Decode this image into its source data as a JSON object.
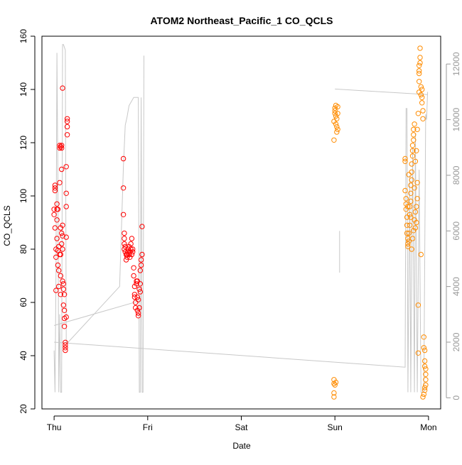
{
  "chart_data": {
    "type": "scatter",
    "title": "ATOM2 Northeast_Pacific_1 CO_QCLS",
    "xlabel": "Date",
    "ylabel": "CO_QCLS",
    "x_ticks": [
      "Thu",
      "Fri",
      "Sat",
      "Sun",
      "Mon"
    ],
    "xlim": [
      -0.13,
      4.13
    ],
    "ylim": [
      20,
      160
    ],
    "y_ticks": [
      20,
      40,
      60,
      80,
      100,
      120,
      140,
      160
    ],
    "y2lim": [
      -400,
      13000
    ],
    "y2_ticks": [
      0,
      2000,
      4000,
      6000,
      8000,
      10000,
      12000
    ],
    "grid": false,
    "legend": "none",
    "colors": {
      "red": "#ff0000",
      "orange": "#ff8c00",
      "altitude": "#c8c8c8"
    },
    "series": [
      {
        "color": "red",
        "marker": "circle-open",
        "points": [
          [
            0.0,
            95
          ],
          [
            0.0,
            93
          ],
          [
            0.01,
            102
          ],
          [
            0.01,
            104
          ],
          [
            0.01,
            103
          ],
          [
            0.01,
            88
          ],
          [
            0.02,
            80
          ],
          [
            0.02,
            64.5
          ],
          [
            0.02,
            77
          ],
          [
            0.03,
            95
          ],
          [
            0.03,
            84
          ],
          [
            0.03,
            97
          ],
          [
            0.03,
            91
          ],
          [
            0.04,
            95
          ],
          [
            0.04,
            79.5
          ],
          [
            0.04,
            74
          ],
          [
            0.05,
            81
          ],
          [
            0.05,
            66
          ],
          [
            0.05,
            72
          ],
          [
            0.06,
            78
          ],
          [
            0.06,
            105
          ],
          [
            0.06,
            118
          ],
          [
            0.06,
            119
          ],
          [
            0.07,
            118.5
          ],
          [
            0.07,
            70
          ],
          [
            0.07,
            88
          ],
          [
            0.07,
            78
          ],
          [
            0.07,
            63
          ],
          [
            0.08,
            82
          ],
          [
            0.08,
            110
          ],
          [
            0.08,
            86
          ],
          [
            0.08,
            119
          ],
          [
            0.08,
            118
          ],
          [
            0.09,
            140.5
          ],
          [
            0.09,
            89
          ],
          [
            0.09,
            85
          ],
          [
            0.09,
            80
          ],
          [
            0.09,
            68
          ],
          [
            0.1,
            65
          ],
          [
            0.1,
            67
          ],
          [
            0.1,
            59
          ],
          [
            0.11,
            63
          ],
          [
            0.11,
            57
          ],
          [
            0.11,
            54
          ],
          [
            0.11,
            51
          ],
          [
            0.12,
            45
          ],
          [
            0.12,
            43
          ],
          [
            0.12,
            42
          ],
          [
            0.12,
            44
          ],
          [
            0.13,
            54.5
          ],
          [
            0.13,
            101
          ],
          [
            0.13,
            96
          ],
          [
            0.13,
            84.5
          ],
          [
            0.13,
            111
          ],
          [
            0.14,
            123
          ],
          [
            0.14,
            129
          ],
          [
            0.14,
            126
          ],
          [
            0.14,
            128
          ],
          [
            0.74,
            114
          ],
          [
            0.74,
            103
          ],
          [
            0.74,
            93
          ],
          [
            0.75,
            86
          ],
          [
            0.75,
            84
          ],
          [
            0.75,
            82
          ],
          [
            0.75,
            80
          ],
          [
            0.76,
            81
          ],
          [
            0.76,
            79
          ],
          [
            0.77,
            78
          ],
          [
            0.77,
            76
          ],
          [
            0.78,
            77
          ],
          [
            0.78,
            78
          ],
          [
            0.79,
            79
          ],
          [
            0.79,
            80
          ],
          [
            0.8,
            78
          ],
          [
            0.8,
            81
          ],
          [
            0.81,
            77
          ],
          [
            0.81,
            79
          ],
          [
            0.82,
            80
          ],
          [
            0.82,
            82
          ],
          [
            0.83,
            84
          ],
          [
            0.83,
            78
          ],
          [
            0.84,
            79
          ],
          [
            0.84,
            80
          ],
          [
            0.85,
            73
          ],
          [
            0.85,
            70
          ],
          [
            0.86,
            66
          ],
          [
            0.86,
            63
          ],
          [
            0.87,
            60
          ],
          [
            0.87,
            58
          ],
          [
            0.88,
            68
          ],
          [
            0.88,
            67
          ],
          [
            0.89,
            62
          ],
          [
            0.89,
            57
          ],
          [
            0.9,
            56
          ],
          [
            0.9,
            55
          ],
          [
            0.91,
            58
          ],
          [
            0.91,
            65
          ],
          [
            0.92,
            67
          ],
          [
            0.92,
            72
          ],
          [
            0.93,
            74
          ],
          [
            0.93,
            76
          ],
          [
            0.94,
            78
          ],
          [
            0.94,
            88.5
          ],
          [
            0.92,
            64
          ],
          [
            0.9,
            61
          ],
          [
            0.89,
            68
          ],
          [
            0.86,
            62
          ]
        ]
      },
      {
        "color": "orange",
        "marker": "circle-open",
        "points": [
          [
            2.99,
            121
          ],
          [
            2.99,
            128
          ],
          [
            3.0,
            132
          ],
          [
            3.0,
            133
          ],
          [
            3.0,
            131
          ],
          [
            3.01,
            130
          ],
          [
            3.01,
            134
          ],
          [
            3.01,
            127
          ],
          [
            3.02,
            129
          ],
          [
            3.02,
            126
          ],
          [
            3.02,
            124
          ],
          [
            3.03,
            125
          ],
          [
            3.03,
            131
          ],
          [
            3.03,
            133.5
          ],
          [
            2.99,
            31
          ],
          [
            2.99,
            29.5
          ],
          [
            3.0,
            29
          ],
          [
            3.01,
            30
          ],
          [
            2.99,
            26
          ],
          [
            2.99,
            24.5
          ],
          [
            3.75,
            113
          ],
          [
            3.75,
            114
          ],
          [
            3.75,
            102
          ],
          [
            3.76,
            99
          ],
          [
            3.76,
            97
          ],
          [
            3.76,
            95
          ],
          [
            3.77,
            92
          ],
          [
            3.77,
            89
          ],
          [
            3.77,
            86
          ],
          [
            3.78,
            84
          ],
          [
            3.78,
            82
          ],
          [
            3.78,
            81
          ],
          [
            3.79,
            83
          ],
          [
            3.79,
            86
          ],
          [
            3.8,
            89
          ],
          [
            3.8,
            93
          ],
          [
            3.8,
            96
          ],
          [
            3.81,
            98
          ],
          [
            3.81,
            101
          ],
          [
            3.81,
            104
          ],
          [
            3.82,
            106
          ],
          [
            3.82,
            109
          ],
          [
            3.82,
            112
          ],
          [
            3.83,
            115
          ],
          [
            3.83,
            117
          ],
          [
            3.83,
            119
          ],
          [
            3.84,
            121
          ],
          [
            3.84,
            123
          ],
          [
            3.84,
            125
          ],
          [
            3.85,
            127
          ],
          [
            3.85,
            103
          ],
          [
            3.86,
            94
          ],
          [
            3.86,
            88
          ],
          [
            3.87,
            90
          ],
          [
            3.87,
            96
          ],
          [
            3.88,
            99
          ],
          [
            3.88,
            105
          ],
          [
            3.89,
            41
          ],
          [
            3.89,
            59
          ],
          [
            3.9,
            143
          ],
          [
            3.9,
            146
          ],
          [
            3.9,
            149
          ],
          [
            3.91,
            150
          ],
          [
            3.91,
            152
          ],
          [
            3.91,
            155.5
          ],
          [
            3.92,
            141
          ],
          [
            3.92,
            138
          ],
          [
            3.93,
            137
          ],
          [
            3.93,
            135
          ],
          [
            3.93,
            140
          ],
          [
            3.94,
            132
          ],
          [
            3.94,
            129
          ],
          [
            3.95,
            47
          ],
          [
            3.95,
            43
          ],
          [
            3.96,
            42
          ],
          [
            3.96,
            38
          ],
          [
            3.96,
            36
          ],
          [
            3.97,
            35
          ],
          [
            3.97,
            33
          ],
          [
            3.97,
            31
          ],
          [
            3.97,
            29
          ],
          [
            3.96,
            28
          ],
          [
            3.96,
            27
          ],
          [
            3.95,
            25.5
          ],
          [
            3.94,
            24.5
          ],
          [
            3.9,
            147
          ],
          [
            3.9,
            139
          ],
          [
            3.89,
            131
          ],
          [
            3.88,
            125
          ],
          [
            3.87,
            117
          ],
          [
            3.86,
            113
          ],
          [
            3.85,
            91
          ],
          [
            3.84,
            87
          ],
          [
            3.83,
            84
          ],
          [
            3.82,
            80
          ],
          [
            3.81,
            92
          ],
          [
            3.79,
            108
          ],
          [
            3.78,
            96
          ],
          [
            3.92,
            78
          ]
        ]
      }
    ],
    "altitude_segments": [
      [
        [
          0.0,
          1700
        ],
        [
          0.01,
          200
        ],
        [
          0.02,
          4500
        ],
        [
          0.03,
          12400
        ],
        [
          0.04,
          8000
        ],
        [
          0.05,
          200
        ],
        [
          0.06,
          3000
        ],
        [
          0.07,
          200
        ],
        [
          0.08,
          200
        ],
        [
          0.09,
          12700
        ],
        [
          0.1,
          12700
        ],
        [
          0.11,
          12600
        ],
        [
          0.12,
          12500
        ],
        [
          0.13,
          2000
        ],
        [
          0.15,
          2000
        ],
        [
          0.7,
          4000
        ],
        [
          0.74,
          8300
        ],
        [
          0.76,
          9800
        ],
        [
          0.78,
          10100
        ],
        [
          0.8,
          10500
        ],
        [
          0.85,
          10800
        ],
        [
          0.9,
          10800
        ],
        [
          0.91,
          200
        ],
        [
          0.92,
          200
        ],
        [
          0.93,
          10800
        ],
        [
          0.94,
          200
        ],
        [
          0.95,
          200
        ],
        [
          0.96,
          12300
        ]
      ],
      [
        [
          0.0,
          2600
        ],
        [
          0.93,
          3500
        ]
      ],
      [
        [
          0.0,
          2000
        ],
        [
          3.75,
          1100
        ],
        [
          3.76,
          10400
        ],
        [
          3.77,
          10400
        ],
        [
          3.78,
          200
        ],
        [
          3.8,
          8000
        ],
        [
          3.81,
          200
        ],
        [
          3.83,
          9000
        ],
        [
          3.85,
          200
        ],
        [
          3.86,
          9500
        ],
        [
          3.88,
          200
        ],
        [
          3.9,
          8200
        ],
        [
          3.92,
          200
        ],
        [
          3.95,
          200
        ],
        [
          3.97,
          10200
        ],
        [
          3.98,
          10000
        ],
        [
          3.99,
          11000
        ]
      ],
      [
        [
          3.0,
          11100
        ],
        [
          3.99,
          10900
        ]
      ],
      [
        [
          3.05,
          6000
        ],
        [
          3.05,
          4500
        ]
      ]
    ]
  }
}
